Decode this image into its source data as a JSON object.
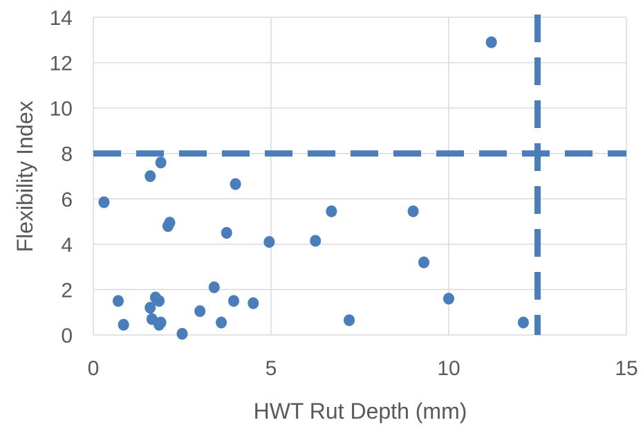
{
  "chart_data": {
    "type": "scatter",
    "xlabel": "HWT Rut Depth (mm)",
    "ylabel": "Flexibility Index",
    "xlim": [
      0,
      15
    ],
    "ylim": [
      0,
      14
    ],
    "xticks": [
      "0",
      "5",
      "10",
      "15"
    ],
    "yticks": [
      "0",
      "2",
      "4",
      "6",
      "8",
      "10",
      "12",
      "14"
    ],
    "grid": true,
    "legend": "none",
    "marker_color": "#4a7ebb",
    "threshold_color": "#4a7ebb",
    "thresholds": {
      "horizontal_y": 8,
      "vertical_x": 12.5
    },
    "series": [
      {
        "points": [
          {
            "x": 0.3,
            "y": 5.85
          },
          {
            "x": 0.7,
            "y": 1.5
          },
          {
            "x": 0.85,
            "y": 0.45
          },
          {
            "x": 1.6,
            "y": 7.0
          },
          {
            "x": 1.6,
            "y": 1.2
          },
          {
            "x": 1.65,
            "y": 0.7
          },
          {
            "x": 1.75,
            "y": 1.65
          },
          {
            "x": 1.85,
            "y": 1.5
          },
          {
            "x": 1.85,
            "y": 0.45
          },
          {
            "x": 1.9,
            "y": 0.55
          },
          {
            "x": 1.9,
            "y": 7.6
          },
          {
            "x": 2.1,
            "y": 4.8
          },
          {
            "x": 2.15,
            "y": 4.95
          },
          {
            "x": 2.5,
            "y": 0.05
          },
          {
            "x": 3.0,
            "y": 1.05
          },
          {
            "x": 3.4,
            "y": 2.1
          },
          {
            "x": 3.6,
            "y": 0.55
          },
          {
            "x": 3.75,
            "y": 4.5
          },
          {
            "x": 3.95,
            "y": 1.5
          },
          {
            "x": 4.0,
            "y": 6.65
          },
          {
            "x": 4.5,
            "y": 1.4
          },
          {
            "x": 4.95,
            "y": 4.1
          },
          {
            "x": 6.25,
            "y": 4.15
          },
          {
            "x": 6.7,
            "y": 5.45
          },
          {
            "x": 7.2,
            "y": 0.65
          },
          {
            "x": 9.0,
            "y": 5.45
          },
          {
            "x": 9.3,
            "y": 3.2
          },
          {
            "x": 10.0,
            "y": 1.6
          },
          {
            "x": 11.2,
            "y": 12.9
          },
          {
            "x": 12.1,
            "y": 0.55
          }
        ]
      }
    ]
  }
}
